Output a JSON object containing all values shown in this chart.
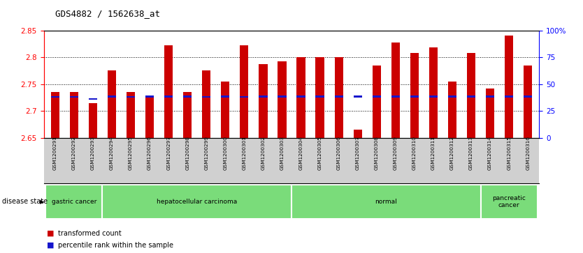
{
  "title": "GDS4882 / 1562638_at",
  "samples": [
    "GSM1200291",
    "GSM1200292",
    "GSM1200293",
    "GSM1200294",
    "GSM1200295",
    "GSM1200296",
    "GSM1200297",
    "GSM1200298",
    "GSM1200299",
    "GSM1200300",
    "GSM1200301",
    "GSM1200302",
    "GSM1200303",
    "GSM1200304",
    "GSM1200305",
    "GSM1200306",
    "GSM1200307",
    "GSM1200308",
    "GSM1200309",
    "GSM1200310",
    "GSM1200311",
    "GSM1200312",
    "GSM1200313",
    "GSM1200314",
    "GSM1200315",
    "GSM1200316"
  ],
  "transformed_count": [
    2.735,
    2.735,
    2.715,
    2.775,
    2.735,
    2.725,
    2.822,
    2.735,
    2.775,
    2.755,
    2.822,
    2.787,
    2.793,
    2.8,
    2.8,
    2.8,
    2.665,
    2.785,
    2.828,
    2.808,
    2.818,
    2.755,
    2.808,
    2.742,
    2.84,
    2.785
  ],
  "percentile_rank_y": [
    2.726,
    2.726,
    2.722,
    2.727,
    2.726,
    2.727,
    2.727,
    2.727,
    2.726,
    2.727,
    2.726,
    2.727,
    2.727,
    2.727,
    2.727,
    2.727,
    2.727,
    2.727,
    2.727,
    2.727,
    2.727,
    2.727,
    2.727,
    2.727,
    2.727,
    2.727
  ],
  "disease_groups": [
    {
      "label": "gastric cancer",
      "start": 0,
      "end": 2
    },
    {
      "label": "hepatocellular carcinoma",
      "start": 3,
      "end": 12
    },
    {
      "label": "normal",
      "start": 13,
      "end": 22
    },
    {
      "label": "pancreatic\ncancer",
      "start": 23,
      "end": 25
    }
  ],
  "ylim_left": [
    2.65,
    2.85
  ],
  "ylim_right": [
    0,
    100
  ],
  "bar_color": "#cc0000",
  "percentile_color": "#1515cc",
  "bg_color": "#ffffff",
  "plot_bg": "#ffffff",
  "tick_bg": "#d0d0d0",
  "disease_bg": "#7adc7a",
  "right_yticks": [
    0,
    25,
    50,
    75,
    100
  ],
  "right_yticklabels": [
    "0",
    "25",
    "50",
    "75",
    "100%"
  ],
  "left_yticks": [
    2.65,
    2.7,
    2.75,
    2.8,
    2.85
  ],
  "grid_yticks": [
    2.7,
    2.75,
    2.8
  ]
}
